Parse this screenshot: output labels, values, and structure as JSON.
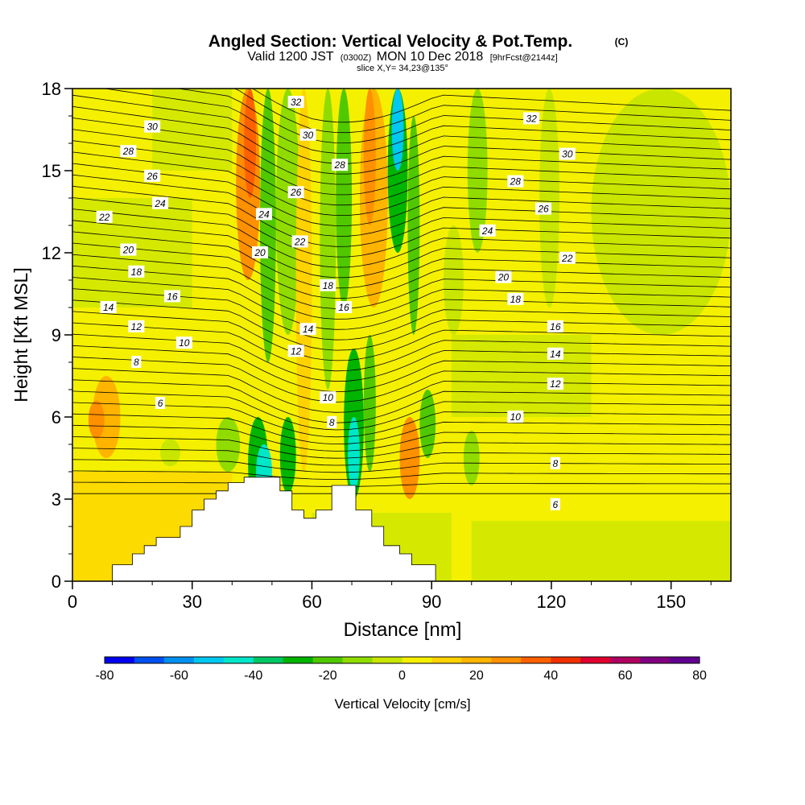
{
  "chart_data": {
    "type": "heatmap",
    "title": "Angled Section: Vertical Velocity & Pot.Temp.",
    "title_unit": "(C)",
    "subtitle_valid": "Valid 1200 JST",
    "subtitle_utc": "(0300Z)",
    "subtitle_date": "MON 10 Dec 2018",
    "subtitle_fcst": "[9hrFcst@2144z]",
    "slice_text": "slice X,Y= 34,23@135°",
    "xlabel": "Distance [nm]",
    "ylabel": "Height [Kft MSL]",
    "xlim": [
      0,
      165
    ],
    "ylim": [
      0,
      18
    ],
    "xticks": [
      "0",
      "30",
      "60",
      "90",
      "120",
      "150"
    ],
    "yticks": [
      "0",
      "3",
      "6",
      "9",
      "12",
      "15",
      "18"
    ],
    "colorbar": {
      "label": "Vertical Velocity [cm/s]",
      "ticks": [
        "-80",
        "-60",
        "-40",
        "-20",
        "0",
        "20",
        "40",
        "60",
        "80"
      ],
      "colors": [
        "#0000f0",
        "#0050f0",
        "#0090f0",
        "#00c8f0",
        "#00e6c8",
        "#00c864",
        "#00b400",
        "#50c800",
        "#90dc00",
        "#c8e600",
        "#f5f000",
        "#ffd200",
        "#ffb400",
        "#ff9000",
        "#ff6000",
        "#f03000",
        "#e00030",
        "#b00060",
        "#800080",
        "#600090"
      ],
      "min": -80,
      "max": 80
    },
    "terrain": [
      [
        0,
        0
      ],
      [
        10,
        0
      ],
      [
        10,
        0.6
      ],
      [
        15,
        0.6
      ],
      [
        15,
        1.0
      ],
      [
        18,
        1.0
      ],
      [
        18,
        1.3
      ],
      [
        21,
        1.3
      ],
      [
        21,
        1.6
      ],
      [
        27,
        1.6
      ],
      [
        27,
        2.0
      ],
      [
        30,
        2.0
      ],
      [
        30,
        2.6
      ],
      [
        33,
        2.6
      ],
      [
        33,
        3.0
      ],
      [
        36,
        3.0
      ],
      [
        36,
        3.3
      ],
      [
        39,
        3.3
      ],
      [
        39,
        3.6
      ],
      [
        43,
        3.6
      ],
      [
        43,
        3.8
      ],
      [
        52,
        3.8
      ],
      [
        52,
        3.3
      ],
      [
        55,
        3.3
      ],
      [
        55,
        2.6
      ],
      [
        58,
        2.6
      ],
      [
        58,
        2.3
      ],
      [
        61,
        2.3
      ],
      [
        61,
        2.6
      ],
      [
        65,
        2.6
      ],
      [
        65,
        3.5
      ],
      [
        71,
        3.5
      ],
      [
        71,
        2.6
      ],
      [
        75,
        2.6
      ],
      [
        75,
        2.0
      ],
      [
        78,
        2.0
      ],
      [
        78,
        1.3
      ],
      [
        82,
        1.3
      ],
      [
        82,
        1.0
      ],
      [
        85,
        1.0
      ],
      [
        85,
        0.6
      ],
      [
        91,
        0.6
      ],
      [
        91,
        0
      ],
      [
        165,
        0
      ]
    ],
    "velocity_cells": [
      {
        "x": [
          5,
          12
        ],
        "y": [
          4.5,
          7.5
        ],
        "v": 22
      },
      {
        "x": [
          4,
          8
        ],
        "y": [
          5.2,
          6.6
        ],
        "v": 28
      },
      {
        "x": [
          36,
          42
        ],
        "y": [
          4.0,
          6.0
        ],
        "v": -16
      },
      {
        "x": [
          22,
          27
        ],
        "y": [
          4.2,
          5.2
        ],
        "v": -8
      },
      {
        "x": [
          41,
          47
        ],
        "y": [
          11,
          18
        ],
        "v": 28
      },
      {
        "x": [
          43,
          46
        ],
        "y": [
          14,
          18
        ],
        "v": 36
      },
      {
        "x": [
          47,
          51
        ],
        "y": [
          8,
          18
        ],
        "v": -18
      },
      {
        "x": [
          44,
          49
        ],
        "y": [
          2.6,
          6.0
        ],
        "v": -30
      },
      {
        "x": [
          46,
          50
        ],
        "y": [
          3.0,
          5.0
        ],
        "v": -45
      },
      {
        "x": [
          51,
          57
        ],
        "y": [
          9,
          18
        ],
        "v": -12
      },
      {
        "x": [
          52,
          56
        ],
        "y": [
          3.2,
          6.0
        ],
        "v": -25
      },
      {
        "x": [
          56,
          60
        ],
        "y": [
          4,
          18
        ],
        "v": 12
      },
      {
        "x": [
          62,
          66
        ],
        "y": [
          7,
          18
        ],
        "v": -14
      },
      {
        "x": [
          66,
          70
        ],
        "y": [
          10,
          18
        ],
        "v": -20
      },
      {
        "x": [
          68,
          73
        ],
        "y": [
          3.0,
          8.5
        ],
        "v": -32
      },
      {
        "x": [
          69,
          72
        ],
        "y": [
          3.3,
          6.0
        ],
        "v": -48
      },
      {
        "x": [
          73,
          76
        ],
        "y": [
          4,
          9
        ],
        "v": -18
      },
      {
        "x": [
          72,
          79
        ],
        "y": [
          10,
          18
        ],
        "v": 18
      },
      {
        "x": [
          73,
          76
        ],
        "y": [
          13,
          18
        ],
        "v": 24
      },
      {
        "x": [
          79,
          84
        ],
        "y": [
          12,
          18
        ],
        "v": -30
      },
      {
        "x": [
          80,
          83
        ],
        "y": [
          15,
          18
        ],
        "v": -50
      },
      {
        "x": [
          84,
          87
        ],
        "y": [
          9,
          17
        ],
        "v": -18
      },
      {
        "x": [
          82,
          87
        ],
        "y": [
          3.0,
          6.0
        ],
        "v": 24
      },
      {
        "x": [
          87,
          91
        ],
        "y": [
          4.5,
          7.0
        ],
        "v": -22
      },
      {
        "x": [
          99,
          104
        ],
        "y": [
          12,
          18
        ],
        "v": -10
      },
      {
        "x": [
          98,
          102
        ],
        "y": [
          3.5,
          5.5
        ],
        "v": -15
      },
      {
        "x": [
          117,
          122
        ],
        "y": [
          10,
          18
        ],
        "v": -8
      },
      {
        "x": [
          130,
          165
        ],
        "y": [
          9,
          18
        ],
        "v": -8
      },
      {
        "x": [
          93,
          98
        ],
        "y": [
          9,
          13
        ],
        "v": -8
      }
    ],
    "isotherm_labels": [
      {
        "text": "32",
        "x": 56,
        "y": 17.5
      },
      {
        "text": "30",
        "x": 20,
        "y": 16.6
      },
      {
        "text": "28",
        "x": 14,
        "y": 15.7
      },
      {
        "text": "26",
        "x": 20,
        "y": 14.8
      },
      {
        "text": "24",
        "x": 22,
        "y": 13.8
      },
      {
        "text": "22",
        "x": 8,
        "y": 13.3
      },
      {
        "text": "20",
        "x": 14,
        "y": 12.1
      },
      {
        "text": "18",
        "x": 16,
        "y": 11.3
      },
      {
        "text": "16",
        "x": 25,
        "y": 10.4
      },
      {
        "text": "14",
        "x": 9,
        "y": 10.0
      },
      {
        "text": "12",
        "x": 16,
        "y": 9.3
      },
      {
        "text": "10",
        "x": 28,
        "y": 8.7
      },
      {
        "text": "8",
        "x": 16,
        "y": 8.0
      },
      {
        "text": "6",
        "x": 22,
        "y": 6.5
      },
      {
        "text": "30",
        "x": 59,
        "y": 16.3
      },
      {
        "text": "28",
        "x": 67,
        "y": 15.2
      },
      {
        "text": "26",
        "x": 56,
        "y": 14.2
      },
      {
        "text": "24",
        "x": 48,
        "y": 13.4
      },
      {
        "text": "22",
        "x": 57,
        "y": 12.4
      },
      {
        "text": "20",
        "x": 47,
        "y": 12.0
      },
      {
        "text": "18",
        "x": 64,
        "y": 10.8
      },
      {
        "text": "16",
        "x": 68,
        "y": 10.0
      },
      {
        "text": "14",
        "x": 59,
        "y": 9.2
      },
      {
        "text": "12",
        "x": 56,
        "y": 8.4
      },
      {
        "text": "10",
        "x": 64,
        "y": 6.7
      },
      {
        "text": "8",
        "x": 65,
        "y": 5.8
      },
      {
        "text": "32",
        "x": 115,
        "y": 16.9
      },
      {
        "text": "30",
        "x": 124,
        "y": 15.6
      },
      {
        "text": "28",
        "x": 111,
        "y": 14.6
      },
      {
        "text": "26",
        "x": 118,
        "y": 13.6
      },
      {
        "text": "24",
        "x": 104,
        "y": 12.8
      },
      {
        "text": "22",
        "x": 124,
        "y": 11.8
      },
      {
        "text": "20",
        "x": 108,
        "y": 11.1
      },
      {
        "text": "18",
        "x": 111,
        "y": 10.3
      },
      {
        "text": "16",
        "x": 121,
        "y": 9.3
      },
      {
        "text": "14",
        "x": 121,
        "y": 8.3
      },
      {
        "text": "12",
        "x": 121,
        "y": 7.2
      },
      {
        "text": "10",
        "x": 111,
        "y": 6.0
      },
      {
        "text": "8",
        "x": 121,
        "y": 4.3
      },
      {
        "text": "6",
        "x": 121,
        "y": 2.8
      }
    ]
  }
}
